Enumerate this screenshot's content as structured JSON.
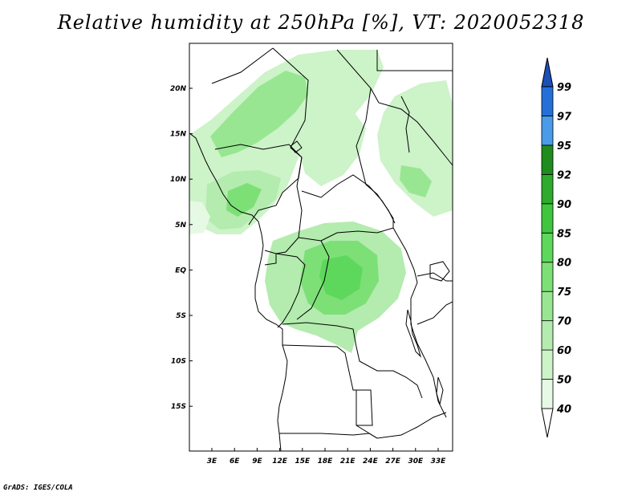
{
  "title": "Relative humidity at 250hPa [%], VT: 2020052318",
  "credit": "GrADS: IGES/COLA",
  "map": {
    "lat_ticks": [
      "20N",
      "15N",
      "10N",
      "5N",
      "EQ",
      "5S",
      "10S",
      "15S"
    ],
    "lon_ticks": [
      "3E",
      "6E",
      "9E",
      "12E",
      "15E",
      "18E",
      "21E",
      "24E",
      "27E",
      "30E",
      "33E"
    ]
  },
  "colorbar": {
    "labels": [
      "40",
      "50",
      "60",
      "70",
      "75",
      "80",
      "85",
      "90",
      "92",
      "95",
      "97",
      "99"
    ],
    "colors": [
      "#ffffff",
      "#e6f9e4",
      "#cdf3c8",
      "#b3ecae",
      "#98e692",
      "#7de077",
      "#5ed85c",
      "#3fc63e",
      "#2eaa2d",
      "#1f8c1d",
      "#4a9be8",
      "#2470d8",
      "#1b50b8"
    ]
  }
}
